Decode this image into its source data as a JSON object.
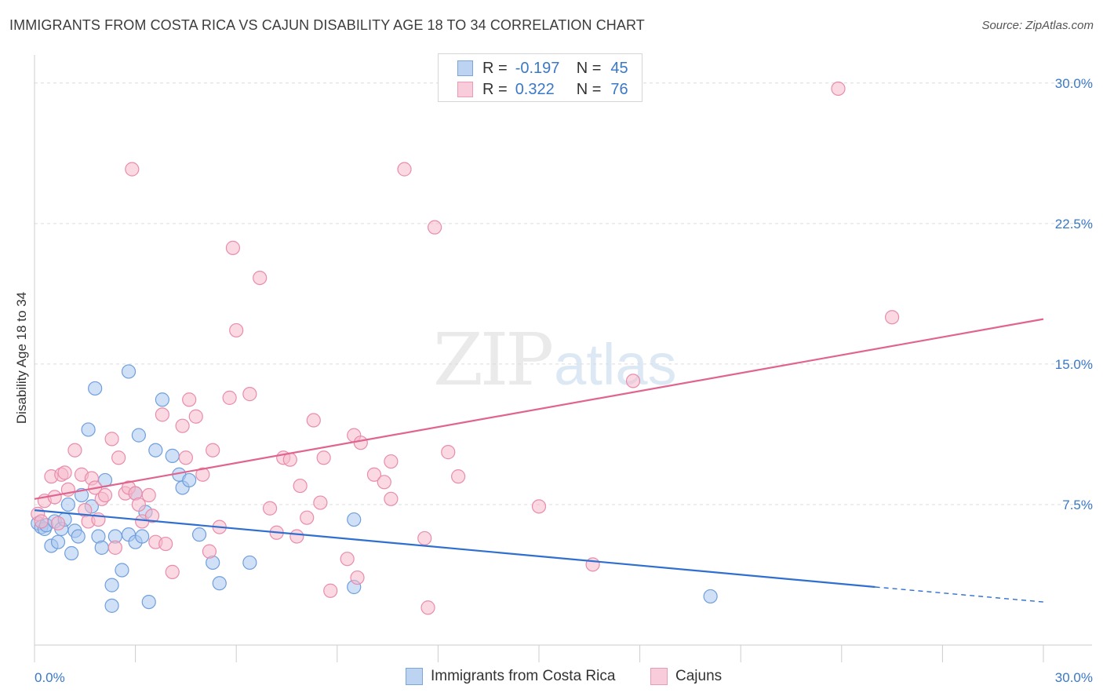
{
  "title": "IMMIGRANTS FROM COSTA RICA VS CAJUN DISABILITY AGE 18 TO 34 CORRELATION CHART",
  "source": "Source: ZipAtlas.com",
  "watermark": {
    "zip": "ZIP",
    "atlas": "atlas"
  },
  "legend": {
    "r_label": "R =",
    "n_label": "N =",
    "rows": [
      {
        "r": "-0.197",
        "n": "45"
      },
      {
        "r": "0.322",
        "n": "76"
      }
    ]
  },
  "colors": {
    "blue_fill": "#a9c6ee",
    "blue_stroke": "#6f9fdc",
    "blue_line": "#2f6fd0",
    "pink_fill": "#f6b9cc",
    "pink_stroke": "#e98cab",
    "pink_line": "#e0648f",
    "tick_label": "#3a78c8",
    "grid": "#dcdcdc"
  },
  "chart_data": {
    "type": "scatter",
    "title": "IMMIGRANTS FROM COSTA RICA VS CAJUN DISABILITY AGE 18 TO 34 CORRELATION CHART",
    "xlabel": "",
    "ylabel": "Disability Age 18 to 34",
    "xlim": [
      0,
      30
    ],
    "ylim": [
      0,
      31.5
    ],
    "x_tick_labels": [
      "0.0%",
      "30.0%"
    ],
    "y_ticks": [
      7.5,
      15.0,
      22.5,
      30.0
    ],
    "y_tick_labels": [
      "7.5%",
      "15.0%",
      "22.5%",
      "30.0%"
    ],
    "grid": true,
    "legend_position": "top-center",
    "series": [
      {
        "name": "Immigrants from Costa Rica",
        "color": "blue",
        "r": -0.197,
        "n": 45,
        "trend": {
          "x0": 0,
          "y0": 7.2,
          "x1": 25,
          "y1": 3.1,
          "dash_to": 30,
          "dash_y": 2.3
        },
        "points": [
          [
            0.1,
            6.5
          ],
          [
            0.2,
            6.3
          ],
          [
            0.3,
            6.2
          ],
          [
            0.35,
            6.4
          ],
          [
            0.5,
            5.3
          ],
          [
            0.6,
            6.6
          ],
          [
            0.7,
            5.5
          ],
          [
            0.8,
            6.2
          ],
          [
            0.9,
            6.7
          ],
          [
            1.0,
            7.5
          ],
          [
            1.1,
            4.9
          ],
          [
            1.2,
            6.1
          ],
          [
            1.3,
            5.8
          ],
          [
            1.4,
            8.0
          ],
          [
            1.6,
            11.5
          ],
          [
            1.7,
            7.4
          ],
          [
            1.8,
            13.7
          ],
          [
            1.9,
            5.8
          ],
          [
            2.0,
            5.2
          ],
          [
            2.1,
            8.8
          ],
          [
            2.3,
            3.2
          ],
          [
            2.3,
            2.1
          ],
          [
            2.4,
            5.8
          ],
          [
            2.6,
            4.0
          ],
          [
            2.8,
            14.6
          ],
          [
            2.8,
            5.9
          ],
          [
            3.0,
            8.1
          ],
          [
            3.0,
            5.5
          ],
          [
            3.1,
            11.2
          ],
          [
            3.2,
            5.8
          ],
          [
            3.3,
            7.1
          ],
          [
            3.4,
            2.3
          ],
          [
            3.6,
            10.4
          ],
          [
            3.8,
            13.1
          ],
          [
            4.1,
            10.1
          ],
          [
            4.3,
            9.1
          ],
          [
            4.4,
            8.4
          ],
          [
            4.6,
            8.8
          ],
          [
            4.9,
            5.9
          ],
          [
            5.3,
            4.4
          ],
          [
            5.5,
            3.3
          ],
          [
            6.4,
            4.4
          ],
          [
            9.5,
            6.7
          ],
          [
            9.5,
            3.1
          ],
          [
            20.1,
            2.6
          ]
        ]
      },
      {
        "name": "Cajuns",
        "color": "pink",
        "r": 0.322,
        "n": 76,
        "trend": {
          "x0": 0,
          "y0": 7.8,
          "x1": 30,
          "y1": 17.4
        },
        "points": [
          [
            0.1,
            7.0
          ],
          [
            0.3,
            7.7
          ],
          [
            0.5,
            9.0
          ],
          [
            0.6,
            7.9
          ],
          [
            0.7,
            6.5
          ],
          [
            0.8,
            9.1
          ],
          [
            0.9,
            9.2
          ],
          [
            1.0,
            8.3
          ],
          [
            1.2,
            10.4
          ],
          [
            1.4,
            9.1
          ],
          [
            1.5,
            7.2
          ],
          [
            1.6,
            6.6
          ],
          [
            1.7,
            8.9
          ],
          [
            1.8,
            8.4
          ],
          [
            1.9,
            6.7
          ],
          [
            2.0,
            7.8
          ],
          [
            2.1,
            8.0
          ],
          [
            2.3,
            11.0
          ],
          [
            2.4,
            5.2
          ],
          [
            2.5,
            10.0
          ],
          [
            2.7,
            8.1
          ],
          [
            2.8,
            8.4
          ],
          [
            2.9,
            25.4
          ],
          [
            3.0,
            8.1
          ],
          [
            3.1,
            7.5
          ],
          [
            3.2,
            6.6
          ],
          [
            3.4,
            8.0
          ],
          [
            3.5,
            6.9
          ],
          [
            3.6,
            5.5
          ],
          [
            3.8,
            12.3
          ],
          [
            3.9,
            5.4
          ],
          [
            4.1,
            3.9
          ],
          [
            4.4,
            11.7
          ],
          [
            4.5,
            10.0
          ],
          [
            4.6,
            13.1
          ],
          [
            4.8,
            12.2
          ],
          [
            5.0,
            9.1
          ],
          [
            5.2,
            5.0
          ],
          [
            5.3,
            10.4
          ],
          [
            5.5,
            6.3
          ],
          [
            5.8,
            13.2
          ],
          [
            5.9,
            21.2
          ],
          [
            6.0,
            16.8
          ],
          [
            6.4,
            13.4
          ],
          [
            6.7,
            19.6
          ],
          [
            7.0,
            7.3
          ],
          [
            7.2,
            6.0
          ],
          [
            7.4,
            10.0
          ],
          [
            7.6,
            9.9
          ],
          [
            7.8,
            5.8
          ],
          [
            7.9,
            8.5
          ],
          [
            8.1,
            6.8
          ],
          [
            8.3,
            12.0
          ],
          [
            8.5,
            7.6
          ],
          [
            8.6,
            10.0
          ],
          [
            8.8,
            2.9
          ],
          [
            9.3,
            4.6
          ],
          [
            9.5,
            11.2
          ],
          [
            9.6,
            3.6
          ],
          [
            9.7,
            10.8
          ],
          [
            10.1,
            9.1
          ],
          [
            10.4,
            8.7
          ],
          [
            10.6,
            9.8
          ],
          [
            10.6,
            7.8
          ],
          [
            11.0,
            25.4
          ],
          [
            11.6,
            5.7
          ],
          [
            11.7,
            2.0
          ],
          [
            11.9,
            22.3
          ],
          [
            12.3,
            10.3
          ],
          [
            12.6,
            9.0
          ],
          [
            15.0,
            7.4
          ],
          [
            16.6,
            4.3
          ],
          [
            17.8,
            14.1
          ],
          [
            23.9,
            29.7
          ],
          [
            25.5,
            17.5
          ],
          [
            0.2,
            6.6
          ]
        ]
      }
    ]
  },
  "bottom_legend": [
    "Immigrants from Costa Rica",
    "Cajuns"
  ]
}
